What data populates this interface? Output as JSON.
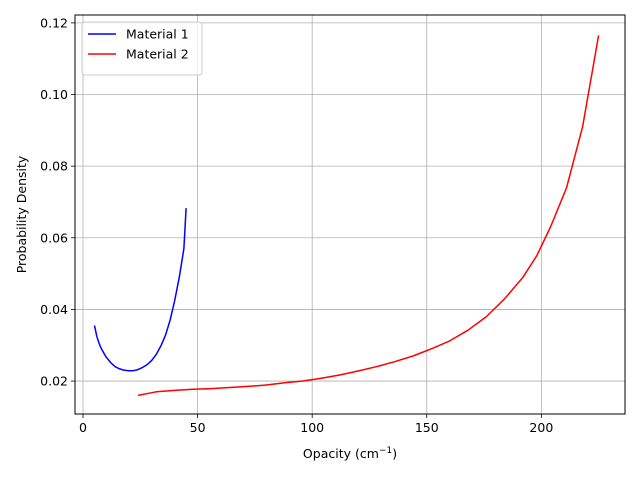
{
  "chart_data": {
    "type": "line",
    "xlabel": "Opacity (cm",
    "xlabel_sup": "−1",
    "xlabel_close": ")",
    "ylabel": "Probability Density",
    "xlim": [
      -3.5,
      236.5
    ],
    "ylim": [
      0.0108,
      0.1222
    ],
    "xticks": [
      0,
      50,
      100,
      150,
      200
    ],
    "xtick_labels": [
      "0",
      "50",
      "100",
      "150",
      "200"
    ],
    "yticks": [
      0.02,
      0.04,
      0.06,
      0.08,
      0.1,
      0.12
    ],
    "ytick_labels": [
      "0.02",
      "0.04",
      "0.06",
      "0.08",
      "0.10",
      "0.12"
    ],
    "grid": true,
    "legend_position": "top-left",
    "series": [
      {
        "name": "Material 1",
        "color": "#0000ff",
        "x": [
          5,
          6,
          7,
          8,
          10,
          12,
          14,
          16,
          18,
          20,
          22,
          24,
          26,
          28,
          30,
          32,
          34,
          36,
          38,
          40,
          42,
          44,
          45
        ],
        "y": [
          0.0355,
          0.0325,
          0.0305,
          0.029,
          0.0268,
          0.0252,
          0.024,
          0.0234,
          0.023,
          0.0229,
          0.0229,
          0.0232,
          0.0238,
          0.0246,
          0.0258,
          0.0275,
          0.0298,
          0.0328,
          0.037,
          0.0425,
          0.049,
          0.057,
          0.0683
        ]
      },
      {
        "name": "Material 2",
        "color": "#ff0000",
        "x": [
          24,
          32,
          40,
          48,
          56,
          64,
          72,
          80,
          88,
          96,
          104,
          112,
          120,
          128,
          136,
          144,
          152,
          160,
          168,
          176,
          184,
          192,
          198,
          204,
          211,
          218,
          225
        ],
        "y": [
          0.016,
          0.017,
          0.0174,
          0.0177,
          0.0179,
          0.0182,
          0.0185,
          0.0189,
          0.0195,
          0.02,
          0.0208,
          0.0217,
          0.0228,
          0.024,
          0.0254,
          0.027,
          0.029,
          0.0312,
          0.0342,
          0.038,
          0.043,
          0.049,
          0.055,
          0.063,
          0.074,
          0.091,
          0.1165
        ]
      }
    ]
  }
}
